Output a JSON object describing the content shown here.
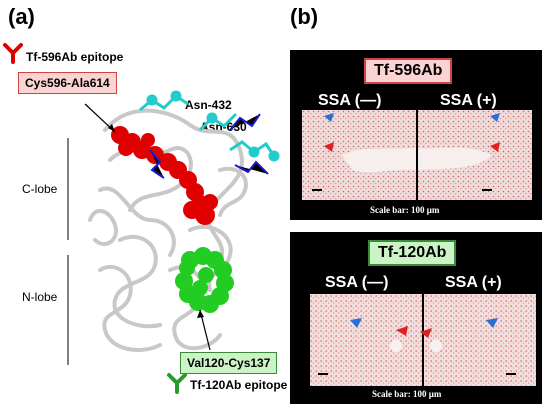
{
  "panel_a": {
    "label": "(a)",
    "top_epitope": "Tf-596Ab epitope",
    "top_seq": "Cys596-Ala614",
    "glycan1": "Asn-432",
    "glycan2": "Asn-630",
    "lobe_c": "C-lobe",
    "lobe_n": "N-lobe",
    "bottom_seq": "Val120-Cys137",
    "bottom_epitope": "Tf-120Ab epitope",
    "colors": {
      "top_epitope": "#e00000",
      "bottom_epitope": "#22cc22",
      "glycan": "#22cccc"
    }
  },
  "panel_b": {
    "label": "(b)",
    "top": {
      "title": "Tf-596Ab",
      "left": "SSA (—)",
      "right": "SSA (+)",
      "scale": "Scale bar: 100 μm"
    },
    "bottom": {
      "title": "Tf-120Ab",
      "left": "SSA (—)",
      "right": "SSA (+)",
      "scale": "Scale bar: 100 μm"
    }
  }
}
